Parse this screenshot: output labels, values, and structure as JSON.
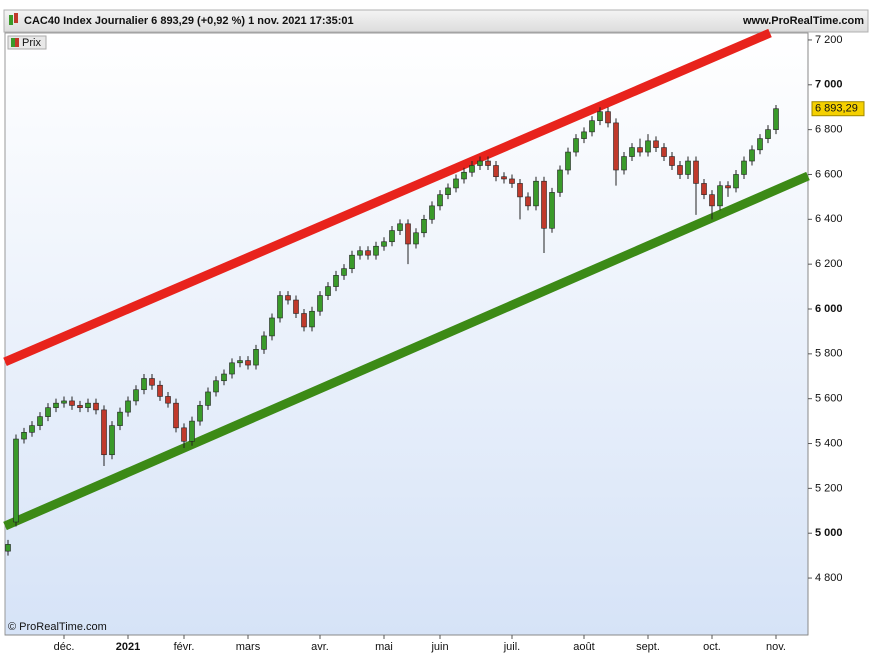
{
  "chart_data": {
    "type": "candlestick",
    "title": "CAC40 Index Journalier 6 893,29 (+0,92 %) 1 nov. 2021 17:35:01",
    "site": "www.ProRealTime.com",
    "legend_label": "Prix",
    "watermark": "© ProRealTime.com",
    "last_label": "6 893,29",
    "up_color": "#3a9a2a",
    "down_color": "#c0392b",
    "categories": [
      null,
      null,
      null,
      null,
      null,
      null,
      null,
      "déc.",
      null,
      null,
      null,
      null,
      null,
      null,
      null,
      "2021",
      null,
      null,
      null,
      null,
      null,
      null,
      "févr.",
      null,
      null,
      null,
      null,
      null,
      null,
      null,
      "mars",
      null,
      null,
      null,
      null,
      null,
      null,
      null,
      null,
      "avr.",
      null,
      null,
      null,
      null,
      null,
      null,
      null,
      "mai",
      null,
      null,
      null,
      null,
      null,
      null,
      "juin",
      null,
      null,
      null,
      null,
      null,
      null,
      null,
      null,
      "juil.",
      null,
      null,
      null,
      null,
      null,
      null,
      null,
      null,
      "août",
      null,
      null,
      null,
      null,
      null,
      null,
      null,
      "sept.",
      null,
      null,
      null,
      null,
      null,
      null,
      null,
      "oct.",
      null,
      null,
      null,
      null,
      null,
      null,
      null,
      "nov."
    ],
    "open": [
      4920,
      5050,
      5420,
      5450,
      5480,
      5520,
      5560,
      5580,
      5590,
      5570,
      5560,
      5580,
      5550,
      5350,
      5480,
      5540,
      5590,
      5640,
      5690,
      5660,
      5610,
      5580,
      5470,
      5410,
      5500,
      5570,
      5630,
      5680,
      5710,
      5760,
      5770,
      5750,
      5820,
      5880,
      5960,
      6060,
      6040,
      5980,
      5920,
      5990,
      6060,
      6100,
      6150,
      6180,
      6240,
      6260,
      6240,
      6280,
      6300,
      6350,
      6380,
      6290,
      6340,
      6400,
      6460,
      6510,
      6540,
      6580,
      6610,
      6640,
      6660,
      6640,
      6590,
      6580,
      6560,
      6500,
      6460,
      6570,
      6360,
      6520,
      6620,
      6700,
      6760,
      6790,
      6840,
      6880,
      6830,
      6620,
      6680,
      6720,
      6700,
      6750,
      6720,
      6680,
      6640,
      6600,
      6660,
      6560,
      6510,
      6460,
      6550,
      6540,
      6600,
      6660,
      6710,
      6760,
      6800
    ],
    "high": [
      4970,
      5440,
      5470,
      5500,
      5540,
      5580,
      5600,
      5610,
      5610,
      5590,
      5600,
      5600,
      5570,
      5500,
      5560,
      5610,
      5660,
      5710,
      5710,
      5680,
      5630,
      5600,
      5490,
      5520,
      5590,
      5650,
      5700,
      5730,
      5780,
      5790,
      5790,
      5840,
      5900,
      5980,
      6080,
      6080,
      6060,
      6000,
      6010,
      6080,
      6120,
      6170,
      6200,
      6260,
      6280,
      6280,
      6300,
      6320,
      6370,
      6400,
      6400,
      6360,
      6420,
      6480,
      6530,
      6560,
      6600,
      6630,
      6660,
      6680,
      6680,
      6660,
      6610,
      6600,
      6580,
      6520,
      6590,
      6590,
      6540,
      6640,
      6720,
      6780,
      6810,
      6860,
      6900,
      6900,
      6850,
      6700,
      6740,
      6760,
      6780,
      6770,
      6740,
      6700,
      6660,
      6680,
      6680,
      6580,
      6530,
      6570,
      6570,
      6620,
      6680,
      6730,
      6780,
      6820,
      6910
    ],
    "low": [
      4900,
      5030,
      5400,
      5430,
      5460,
      5500,
      5540,
      5560,
      5550,
      5540,
      5540,
      5530,
      5300,
      5330,
      5460,
      5520,
      5570,
      5620,
      5640,
      5590,
      5560,
      5450,
      5380,
      5390,
      5480,
      5550,
      5610,
      5660,
      5690,
      5740,
      5730,
      5730,
      5800,
      5860,
      5940,
      6020,
      5960,
      5900,
      5900,
      5970,
      6040,
      6080,
      6130,
      6160,
      6220,
      6220,
      6220,
      6260,
      6280,
      6330,
      6200,
      6270,
      6320,
      6380,
      6440,
      6490,
      6520,
      6560,
      6590,
      6620,
      6620,
      6570,
      6560,
      6540,
      6400,
      6440,
      6440,
      6250,
      6340,
      6500,
      6600,
      6680,
      6740,
      6770,
      6820,
      6810,
      6550,
      6600,
      6660,
      6680,
      6680,
      6700,
      6660,
      6620,
      6580,
      6580,
      6420,
      6490,
      6400,
      6440,
      6500,
      6520,
      6580,
      6640,
      6690,
      6740,
      6780
    ],
    "close": [
      4950,
      5420,
      5450,
      5480,
      5520,
      5560,
      5580,
      5590,
      5570,
      5560,
      5580,
      5550,
      5350,
      5480,
      5540,
      5590,
      5640,
      5690,
      5660,
      5610,
      5580,
      5470,
      5410,
      5500,
      5570,
      5630,
      5680,
      5710,
      5760,
      5770,
      5750,
      5820,
      5880,
      5960,
      6060,
      6040,
      5980,
      5920,
      5990,
      6060,
      6100,
      6150,
      6180,
      6240,
      6260,
      6240,
      6280,
      6300,
      6350,
      6380,
      6290,
      6340,
      6400,
      6460,
      6510,
      6540,
      6580,
      6610,
      6640,
      6660,
      6640,
      6590,
      6580,
      6560,
      6500,
      6460,
      6570,
      6360,
      6520,
      6620,
      6700,
      6760,
      6790,
      6840,
      6880,
      6830,
      6620,
      6680,
      6720,
      6700,
      6750,
      6720,
      6680,
      6640,
      6600,
      6660,
      6560,
      6510,
      6460,
      6550,
      6540,
      6600,
      6660,
      6710,
      6760,
      6800,
      6893.29
    ],
    "channel": [
      {
        "color": "#e8231c",
        "x": [
          -0.375,
          95.25
        ],
        "y": [
          5764,
          7231
        ]
      },
      {
        "color": "#3c8a16",
        "x": [
          -0.375,
          100
        ],
        "y": [
          5032,
          6593
        ]
      }
    ],
    "ylim": [
      4546,
      7231
    ],
    "yticks": [
      {
        "value": 4800,
        "label": "4 800"
      },
      {
        "value": 5000,
        "label": "5 000"
      },
      {
        "value": 5200,
        "label": "5 200"
      },
      {
        "value": 5400,
        "label": "5 400"
      },
      {
        "value": 5600,
        "label": "5 600"
      },
      {
        "value": 5800,
        "label": "5 800"
      },
      {
        "value": 6000,
        "label": "6 000"
      },
      {
        "value": 6200,
        "label": "6 200"
      },
      {
        "value": 6400,
        "label": "6 400"
      },
      {
        "value": 6600,
        "label": "6 600"
      },
      {
        "value": 6800,
        "label": "6 800"
      },
      {
        "value": 7000,
        "label": "7 000"
      },
      {
        "value": 7200,
        "label": "7 200"
      }
    ]
  }
}
